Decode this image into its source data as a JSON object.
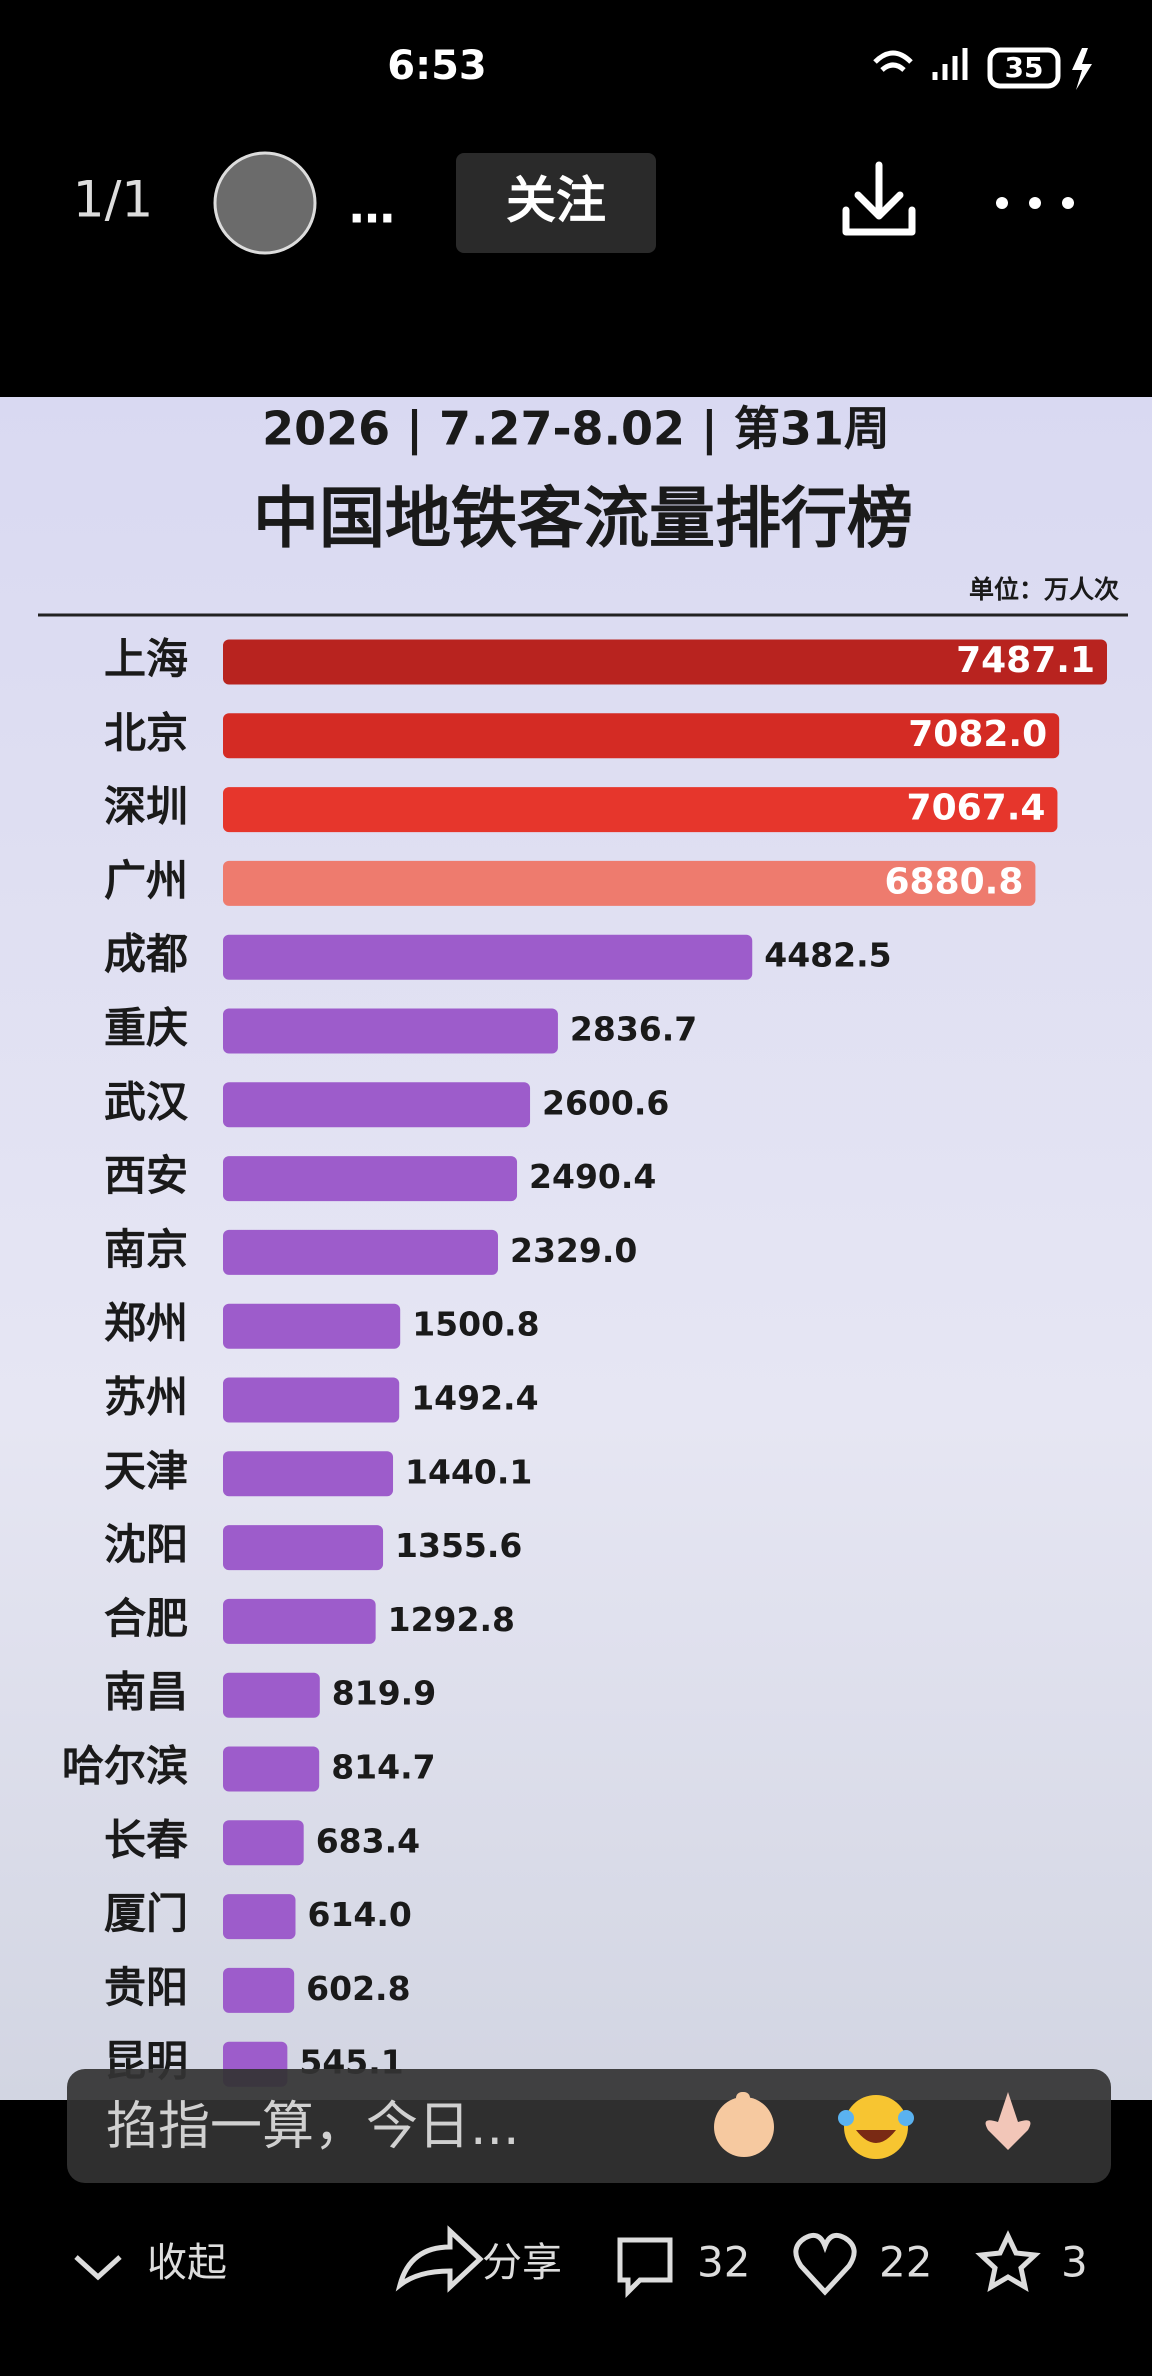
{
  "status_bar": {
    "time": "6:53",
    "battery": "35"
  },
  "header": {
    "page_counter": "1/1",
    "user_name": "…",
    "follow_button": "关注"
  },
  "chart_data": {
    "type": "hbar",
    "title": "2026 | 7.27-8.02 | 第31周",
    "subtitle": "中国地铁客流量排行榜",
    "unit": "单位：万人次",
    "categories": [
      "上海",
      "北京",
      "深圳",
      "广州",
      "成都",
      "重庆",
      "武汉",
      "西安",
      "南京",
      "郑州",
      "苏州",
      "天津",
      "沈阳",
      "合肥",
      "南昌",
      "哈尔滨",
      "长春",
      "厦门",
      "贵阳",
      "昆明"
    ],
    "values": [
      7487.1,
      7082.0,
      7067.4,
      6880.8,
      4482.5,
      2836.7,
      2600.6,
      2490.4,
      2329.0,
      1500.8,
      1492.4,
      1440.1,
      1355.6,
      1292.8,
      819.9,
      814.7,
      683.4,
      614.0,
      602.8,
      545.1
    ],
    "value_labels": [
      "7487.1",
      "7082.0",
      "7067.4",
      "6880.8",
      "4482.5",
      "2836.7",
      "2600.6",
      "2490.4",
      "2329.0",
      "1500.8",
      "1492.4",
      "1440.1",
      "1355.6",
      "1292.8",
      "819.9",
      "814.7",
      "683.4",
      "614.0",
      "602.8",
      "545.1"
    ],
    "colors": [
      "#b8231f",
      "#d42b24",
      "#e6362c",
      "#ee7b6e",
      "#9d5ccb",
      "#9d5ccb",
      "#9d5ccb",
      "#9d5ccb",
      "#9d5ccb",
      "#9d5ccb",
      "#9d5ccb",
      "#9d5ccb",
      "#9d5ccb",
      "#9d5ccb",
      "#9d5ccb",
      "#9d5ccb",
      "#9d5ccb",
      "#9d5ccb",
      "#9d5ccb",
      "#9d5ccb"
    ]
  },
  "comment_bar": {
    "placeholder": "掐指一算，今日..."
  },
  "bottom_bar": {
    "collapse": "收起",
    "share": "分享",
    "comments": "32",
    "likes": "22",
    "favorites": "3"
  }
}
